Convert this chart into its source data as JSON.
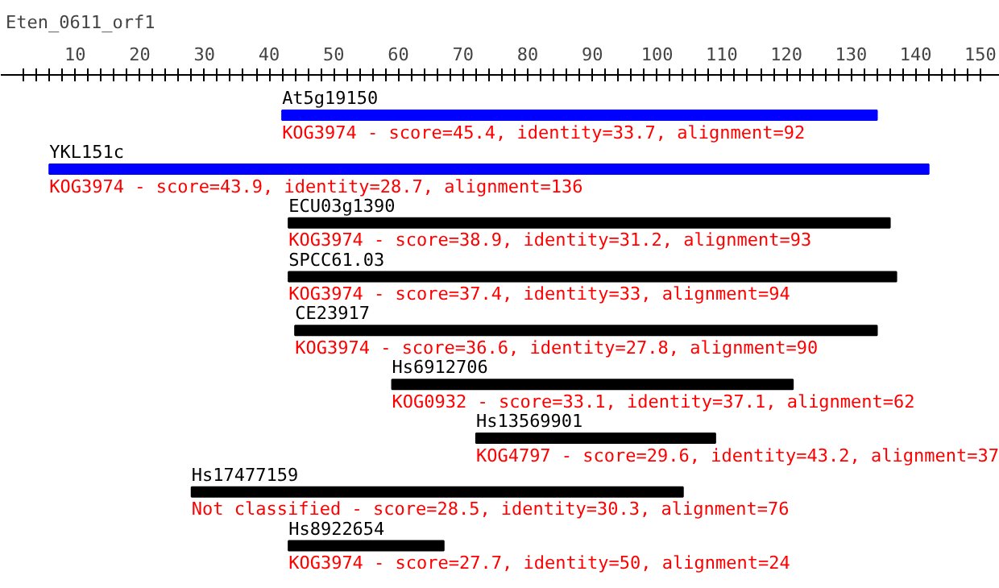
{
  "chart_data": {
    "type": "bar",
    "orientation": "horizontal",
    "title": "Eten_0611_orf1",
    "categories": [
      "At5g19150",
      "YKL151c",
      "ECU03g1390",
      "SPCC61.03",
      "CE23917",
      "Hs6912706",
      "Hs13569901",
      "Hs17477159",
      "Hs8922654"
    ],
    "base": [
      42,
      6,
      43,
      43,
      44,
      59,
      72,
      28,
      43
    ],
    "values": [
      92,
      136,
      93,
      94,
      90,
      62,
      37,
      76,
      24
    ],
    "colors": [
      "#0000ff",
      "#0000ff",
      "#000000",
      "#000000",
      "#000000",
      "#000000",
      "#000000",
      "#000000",
      "#000000"
    ],
    "xlim": [
      -1.5,
      153
    ],
    "xticks": [
      {
        "value": 2,
        "label": null
      },
      {
        "value": 4,
        "label": null
      },
      {
        "value": 6,
        "label": null
      },
      {
        "value": 8,
        "label": null
      },
      10,
      {
        "value": 12,
        "label": null
      },
      {
        "value": 14,
        "label": null
      },
      {
        "value": 16,
        "label": null
      },
      {
        "value": 18,
        "label": null
      },
      20,
      {
        "value": 22,
        "label": null
      },
      {
        "value": 24,
        "label": null
      },
      {
        "value": 26,
        "label": null
      },
      {
        "value": 28,
        "label": null
      },
      30,
      {
        "value": 32,
        "label": null
      },
      {
        "value": 34,
        "label": null
      },
      {
        "value": 36,
        "label": null
      },
      {
        "value": 38,
        "label": null
      },
      40,
      {
        "value": 42,
        "label": null
      },
      {
        "value": 44,
        "label": null
      },
      {
        "value": 46,
        "label": null
      },
      {
        "value": 48,
        "label": null
      },
      50,
      {
        "value": 52,
        "label": null
      },
      {
        "value": 54,
        "label": null
      },
      {
        "value": 56,
        "label": null
      },
      {
        "value": 58,
        "label": null
      },
      60,
      {
        "value": 62,
        "label": null
      },
      {
        "value": 64,
        "label": null
      },
      {
        "value": 66,
        "label": null
      },
      {
        "value": 68,
        "label": null
      },
      70,
      {
        "value": 72,
        "label": null
      },
      {
        "value": 74,
        "label": null
      },
      {
        "value": 76,
        "label": null
      },
      {
        "value": 78,
        "label": null
      },
      80,
      {
        "value": 82,
        "label": null
      },
      {
        "value": 84,
        "label": null
      },
      {
        "value": 86,
        "label": null
      },
      {
        "value": 88,
        "label": null
      },
      90,
      {
        "value": 92,
        "label": null
      },
      {
        "value": 94,
        "label": null
      },
      {
        "value": 96,
        "label": null
      },
      {
        "value": 98,
        "label": null
      },
      100,
      {
        "value": 102,
        "label": null
      },
      {
        "value": 104,
        "label": null
      },
      {
        "value": 106,
        "label": null
      },
      {
        "value": 108,
        "label": null
      },
      110,
      {
        "value": 112,
        "label": null
      },
      {
        "value": 114,
        "label": null
      },
      {
        "value": 116,
        "label": null
      },
      {
        "value": 118,
        "label": null
      },
      120,
      {
        "value": 122,
        "label": null
      },
      {
        "value": 124,
        "label": null
      },
      {
        "value": 126,
        "label": null
      },
      {
        "value": 128,
        "label": null
      },
      130,
      {
        "value": 132,
        "label": null
      },
      {
        "value": 134,
        "label": null
      },
      {
        "value": 136,
        "label": null
      },
      {
        "value": 138,
        "label": null
      },
      140,
      {
        "value": 142,
        "label": null
      },
      {
        "value": 144,
        "label": null
      },
      {
        "value": 146,
        "label": null
      },
      {
        "value": 148,
        "label": null
      },
      150
    ],
    "grid": false,
    "annotations": [
      {
        "text": "KOG3974 - score=45.4, identity=33.7, alignment=92",
        "x": 42,
        "y": "At5g19150"
      },
      {
        "text": "KOG3974 - score=43.9, identity=28.7, alignment=136",
        "x": 6,
        "y": "YKL151c"
      },
      {
        "text": "KOG3974 - score=38.9, identity=31.2, alignment=93",
        "x": 43,
        "y": "ECU03g1390"
      },
      {
        "text": "KOG3974 - score=37.4, identity=33, alignment=94",
        "x": 43,
        "y": "SPCC61.03"
      },
      {
        "text": "KOG3974 - score=36.6, identity=27.8, alignment=90",
        "x": 44,
        "y": "CE23917"
      },
      {
        "text": "KOG0932 - score=33.1, identity=37.1, alignment=62",
        "x": 59,
        "y": "Hs6912706"
      },
      {
        "text": "KOG4797 - score=29.6, identity=43.2, alignment=37",
        "x": 72,
        "y": "Hs13569901"
      },
      {
        "text": "Not classified - score=28.5, identity=30.3, alignment=76",
        "x": 28,
        "y": "Hs17477159"
      },
      {
        "text": "KOG3974 - score=27.7, identity=50, alignment=24",
        "x": 43,
        "y": "Hs8922654"
      }
    ]
  }
}
